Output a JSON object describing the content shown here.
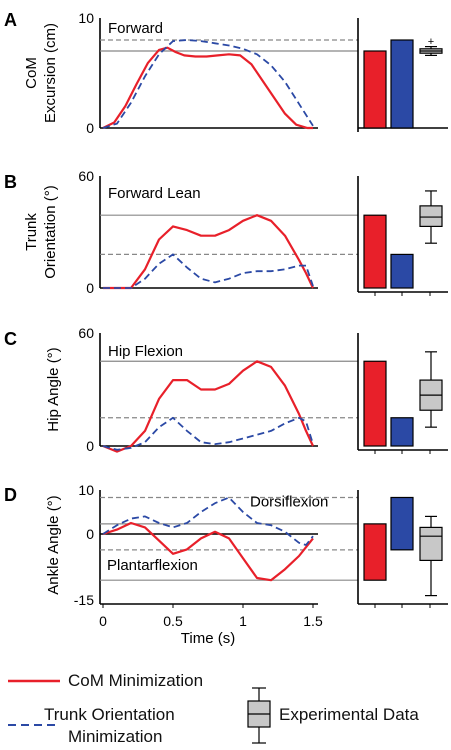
{
  "legend": {
    "com_label": "CoM Minimization",
    "trunk_label_line1": "Trunk Orientation",
    "trunk_label_line2": "Minimization",
    "exp_label": "Experimental Data"
  },
  "colors": {
    "com": "#e8202a",
    "trunk": "#2b49a5",
    "exp": "#c8c8c8",
    "axis": "#000000",
    "ref": "#888888"
  },
  "xaxis": {
    "label": "Time (s)",
    "ticks": [
      "0",
      "0.5",
      "1",
      "1.5"
    ]
  },
  "chart_data": [
    {
      "panel": "A",
      "type": "line",
      "title": "Forward",
      "ylabel_lines": [
        "CoM",
        "Excursion (cm)"
      ],
      "ylim": [
        0,
        10
      ],
      "yticks": [
        "10",
        "0"
      ],
      "ref_solid": 7.0,
      "ref_dashed": 8.0,
      "series": [
        {
          "name": "CoM Minimization",
          "x": [
            0,
            0.08,
            0.16,
            0.24,
            0.32,
            0.4,
            0.46,
            0.52,
            0.58,
            0.66,
            0.74,
            0.82,
            0.9,
            0.98,
            1.06,
            1.14,
            1.22,
            1.3,
            1.38,
            1.46,
            1.5
          ],
          "values": [
            0,
            0.5,
            2.0,
            4.0,
            5.9,
            7.1,
            7.3,
            6.9,
            6.6,
            6.5,
            6.5,
            6.6,
            6.7,
            6.6,
            5.8,
            4.3,
            2.8,
            1.3,
            0.3,
            0.0,
            0.0
          ]
        },
        {
          "name": "Trunk Orientation Minimization",
          "x": [
            0,
            0.1,
            0.2,
            0.3,
            0.4,
            0.5,
            0.6,
            0.7,
            0.8,
            0.9,
            1.0,
            1.1,
            1.2,
            1.3,
            1.4,
            1.5
          ],
          "values": [
            0,
            0.4,
            2.3,
            4.7,
            6.7,
            7.9,
            8.0,
            7.9,
            7.7,
            7.5,
            7.2,
            6.7,
            5.7,
            4.2,
            2.2,
            0.2
          ]
        }
      ],
      "bars": [
        7.0,
        8.0
      ],
      "box": {
        "whisker_low": 6.6,
        "q1": 6.8,
        "median": 7.0,
        "q3": 7.2,
        "whisker_high": 7.4,
        "outlier": 7.9
      }
    },
    {
      "panel": "B",
      "type": "line",
      "title": "Forward Lean",
      "ylabel_lines": [
        "Trunk",
        "Orientation (°)"
      ],
      "ylim": [
        0,
        60
      ],
      "yticks": [
        "60",
        "0"
      ],
      "ref_solid": 39,
      "ref_dashed": 18,
      "series": [
        {
          "name": "CoM Minimization",
          "x": [
            0,
            0.1,
            0.2,
            0.3,
            0.4,
            0.5,
            0.6,
            0.7,
            0.8,
            0.9,
            1.0,
            1.1,
            1.2,
            1.3,
            1.4,
            1.45,
            1.5
          ],
          "values": [
            0,
            0,
            0,
            10,
            26,
            33,
            31,
            28,
            28,
            31,
            36,
            39,
            36,
            28,
            15,
            8,
            0
          ]
        },
        {
          "name": "Trunk Orientation Minimization",
          "x": [
            0,
            0.1,
            0.2,
            0.3,
            0.4,
            0.5,
            0.6,
            0.7,
            0.8,
            0.9,
            1.0,
            1.1,
            1.2,
            1.3,
            1.4,
            1.45,
            1.5
          ],
          "values": [
            0,
            0,
            0,
            5,
            13,
            18,
            11,
            5,
            3,
            5,
            8,
            9,
            9,
            10,
            12,
            12,
            1
          ]
        }
      ],
      "bars": [
        39,
        18
      ],
      "box": {
        "whisker_low": 24,
        "q1": 33,
        "median": 38,
        "q3": 44,
        "whisker_high": 52
      }
    },
    {
      "panel": "C",
      "type": "line",
      "title": "Hip Flexion",
      "ylabel_lines": [
        "Hip Angle (°)"
      ],
      "ylim": [
        0,
        60
      ],
      "yticks": [
        "60",
        "0"
      ],
      "ref_solid": 45,
      "ref_dashed": 15,
      "series": [
        {
          "name": "CoM Minimization",
          "x": [
            0,
            0.1,
            0.2,
            0.3,
            0.4,
            0.5,
            0.6,
            0.7,
            0.8,
            0.9,
            1.0,
            1.1,
            1.2,
            1.3,
            1.4,
            1.45,
            1.5
          ],
          "values": [
            0,
            -3,
            0,
            8,
            25,
            35,
            35,
            30,
            30,
            33,
            40,
            45,
            42,
            32,
            17,
            8,
            0
          ]
        },
        {
          "name": "Trunk Orientation Minimization",
          "x": [
            0,
            0.1,
            0.2,
            0.3,
            0.4,
            0.5,
            0.6,
            0.7,
            0.8,
            0.9,
            1.0,
            1.1,
            1.2,
            1.3,
            1.4,
            1.45,
            1.5
          ],
          "values": [
            0,
            -2,
            -1,
            2,
            10,
            15,
            8,
            2,
            1,
            2,
            4,
            6,
            8,
            12,
            15,
            13,
            1
          ]
        }
      ],
      "bars": [
        45,
        15
      ],
      "box": {
        "whisker_low": 10,
        "q1": 19,
        "median": 27,
        "q3": 35,
        "whisker_high": 50
      }
    },
    {
      "panel": "D",
      "type": "line",
      "title": "",
      "ylabel_lines": [
        "Ankle Angle (°)"
      ],
      "ylim": [
        -15,
        10
      ],
      "yticks": [
        "10",
        "0",
        "-15"
      ],
      "ref_solid_top": 2.3,
      "ref_dashed_top": 8.3,
      "ref_dashed_bottom": -3.6,
      "ref_solid_bottom": -10.5,
      "annotations": [
        "Dorsiflexion",
        "Plantarflexion"
      ],
      "series": [
        {
          "name": "CoM Minimization",
          "x": [
            0,
            0.1,
            0.2,
            0.3,
            0.4,
            0.5,
            0.6,
            0.7,
            0.8,
            0.9,
            1.0,
            1.1,
            1.2,
            1.3,
            1.4,
            1.45,
            1.5
          ],
          "values": [
            0,
            1,
            2.5,
            1.5,
            -1.5,
            -4.5,
            -3.5,
            -1,
            0.5,
            -1,
            -5.5,
            -10,
            -10.5,
            -8,
            -5,
            -3,
            -1
          ]
        },
        {
          "name": "Trunk Orientation Minimization",
          "x": [
            0,
            0.1,
            0.2,
            0.3,
            0.4,
            0.5,
            0.6,
            0.7,
            0.8,
            0.9,
            1.0,
            1.1,
            1.2,
            1.3,
            1.4,
            1.45,
            1.5
          ],
          "values": [
            0,
            2,
            3.5,
            4,
            2.5,
            1.5,
            2.5,
            5,
            7,
            8.3,
            5,
            2.5,
            2,
            0.5,
            -2,
            -2.5,
            -0.5
          ]
        }
      ],
      "bars": [
        -10.5,
        2.3,
        8.3,
        -3.6
      ],
      "box": {
        "whisker_low": -14,
        "q1": -6,
        "median": -0.5,
        "q3": 1.5,
        "whisker_high": 4
      }
    }
  ]
}
